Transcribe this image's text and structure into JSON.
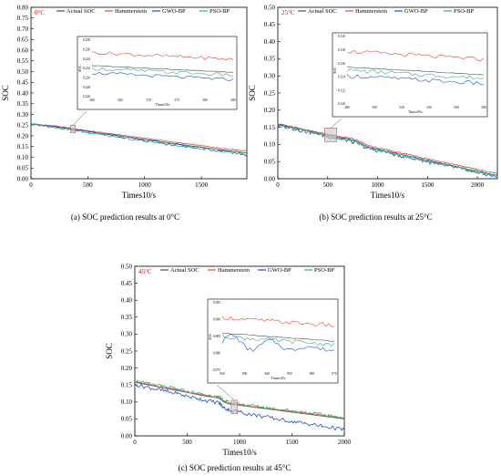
{
  "colors": {
    "actual": "#4d4d4d",
    "hammerstein": "#e8413c",
    "gwo": "#1f4fd6",
    "pso": "#2fb36a",
    "temp_badge": "#e00000"
  },
  "legend": [
    "Actual SOC",
    "Hammerstein",
    "GWO-BP",
    "PSO-BP"
  ],
  "chart_data": [
    {
      "type": "line",
      "temperature_label": "0°C",
      "caption": "(a) SOC prediction results at 0°C",
      "xlabel": "Times10/s",
      "ylabel": "SOC",
      "xlim": [
        0,
        1900
      ],
      "ylim": [
        0,
        0.8
      ],
      "xticks": [
        "0",
        "500",
        "1000",
        "1500"
      ],
      "yticks": [
        "0.00",
        "0.05",
        "0.10",
        "0.15",
        "0.20",
        "0.25",
        "0.30",
        "0.35",
        "0.40",
        "0.45",
        "0.50",
        "0.55",
        "0.60",
        "0.65",
        "0.70",
        "0.75",
        "0.80"
      ],
      "x": [
        0,
        100,
        200,
        300,
        400,
        500,
        600,
        700,
        800,
        900,
        1000,
        1100,
        1200,
        1300,
        1400,
        1500,
        1600,
        1700,
        1800,
        1900
      ],
      "series": [
        {
          "name": "Actual SOC",
          "values": [
            0.255,
            0.25,
            0.244,
            0.238,
            0.229,
            0.221,
            0.213,
            0.205,
            0.198,
            0.19,
            0.183,
            0.176,
            0.168,
            0.161,
            0.154,
            0.147,
            0.14,
            0.133,
            0.127,
            0.12
          ]
        },
        {
          "name": "Hammerstein",
          "values": [
            0.256,
            0.251,
            0.246,
            0.24,
            0.232,
            0.224,
            0.217,
            0.21,
            0.203,
            0.196,
            0.189,
            0.182,
            0.175,
            0.168,
            0.161,
            0.154,
            0.147,
            0.141,
            0.135,
            0.129
          ]
        },
        {
          "name": "GWO-BP",
          "values": [
            0.254,
            0.248,
            0.242,
            0.235,
            0.226,
            0.222,
            0.208,
            0.206,
            0.19,
            0.19,
            0.176,
            0.175,
            0.16,
            0.159,
            0.147,
            0.146,
            0.133,
            0.132,
            0.12,
            0.11
          ]
        },
        {
          "name": "PSO-BP",
          "values": [
            0.253,
            0.247,
            0.241,
            0.233,
            0.224,
            0.214,
            0.213,
            0.197,
            0.198,
            0.18,
            0.182,
            0.166,
            0.166,
            0.151,
            0.153,
            0.137,
            0.14,
            0.122,
            0.126,
            0.105
          ]
        }
      ],
      "inset": {
        "xlabel": "Times10/s",
        "ylabel": "SOC",
        "xticks": [
          "360",
          "365",
          "370",
          "375",
          "380",
          "385"
        ],
        "yticks": [
          "0.226",
          "0.228",
          "0.230",
          "0.232",
          "0.234",
          "0.236",
          "0.238"
        ]
      }
    },
    {
      "type": "line",
      "temperature_label": "25°C",
      "caption": "(b) SOC prediction results at 25°C",
      "xlabel": "Times10/s",
      "ylabel": "SOC",
      "xlim": [
        0,
        2200
      ],
      "ylim": [
        0,
        0.5
      ],
      "xticks": [
        "0",
        "500",
        "1000",
        "1500",
        "2000"
      ],
      "yticks": [
        "0.00",
        "0.05",
        "0.10",
        "0.15",
        "0.20",
        "0.25",
        "0.30",
        "0.35",
        "0.40",
        "0.45",
        "0.50"
      ],
      "x": [
        0,
        100,
        200,
        300,
        400,
        500,
        600,
        700,
        800,
        900,
        1000,
        1100,
        1200,
        1300,
        1400,
        1500,
        1600,
        1700,
        1800,
        1900,
        2000,
        2100,
        2200
      ],
      "series": [
        {
          "name": "Actual SOC",
          "values": [
            0.158,
            0.152,
            0.146,
            0.14,
            0.133,
            0.127,
            0.121,
            0.117,
            0.108,
            0.093,
            0.086,
            0.08,
            0.073,
            0.067,
            0.06,
            0.054,
            0.047,
            0.041,
            0.035,
            0.028,
            0.022,
            0.015,
            0.01
          ]
        },
        {
          "name": "Hammerstein",
          "values": [
            0.16,
            0.154,
            0.148,
            0.142,
            0.136,
            0.13,
            0.124,
            0.12,
            0.112,
            0.097,
            0.09,
            0.084,
            0.077,
            0.071,
            0.065,
            0.058,
            0.052,
            0.046,
            0.04,
            0.033,
            0.027,
            0.02,
            0.015
          ]
        },
        {
          "name": "GWO-BP",
          "values": [
            0.156,
            0.15,
            0.143,
            0.137,
            0.13,
            0.123,
            0.118,
            0.112,
            0.103,
            0.089,
            0.082,
            0.076,
            0.069,
            0.063,
            0.056,
            0.05,
            0.043,
            0.037,
            0.031,
            0.024,
            0.018,
            0.011,
            0.006
          ]
        },
        {
          "name": "PSO-BP",
          "values": [
            0.157,
            0.151,
            0.144,
            0.138,
            0.131,
            0.125,
            0.119,
            0.114,
            0.105,
            0.091,
            0.084,
            0.078,
            0.071,
            0.065,
            0.058,
            0.052,
            0.045,
            0.039,
            0.033,
            0.026,
            0.02,
            0.013,
            0.008
          ]
        }
      ],
      "inset": {
        "xlabel": "Times10/s",
        "ylabel": "SOC",
        "xticks": [
          "480",
          "500",
          "520",
          "540",
          "560",
          "580"
        ],
        "yticks": [
          "0.120",
          "0.122",
          "0.124",
          "0.126",
          "0.128",
          "0.130"
        ]
      }
    },
    {
      "type": "line",
      "temperature_label": "45°C",
      "caption": "(c) SOC prediction results at 45°C",
      "xlabel": "Times10/s",
      "ylabel": "SOC",
      "xlim": [
        0,
        2000
      ],
      "ylim": [
        0,
        0.5
      ],
      "xticks": [
        "0",
        "500",
        "1000",
        "1500",
        "2000"
      ],
      "yticks": [
        "0.00",
        "0.05",
        "0.10",
        "0.15",
        "0.20",
        "0.25",
        "0.30",
        "0.35",
        "0.40",
        "0.45",
        "0.50"
      ],
      "x": [
        0,
        100,
        200,
        300,
        400,
        500,
        600,
        700,
        800,
        850,
        900,
        1000,
        1100,
        1200,
        1300,
        1400,
        1500,
        1600,
        1700,
        1800,
        1900,
        2000
      ],
      "series": [
        {
          "name": "Actual SOC",
          "values": [
            0.158,
            0.152,
            0.146,
            0.14,
            0.134,
            0.128,
            0.122,
            0.116,
            0.112,
            0.1,
            0.094,
            0.09,
            0.086,
            0.082,
            0.078,
            0.074,
            0.07,
            0.066,
            0.062,
            0.058,
            0.054,
            0.05
          ]
        },
        {
          "name": "Hammerstein",
          "values": [
            0.16,
            0.154,
            0.148,
            0.142,
            0.136,
            0.13,
            0.124,
            0.118,
            0.114,
            0.102,
            0.096,
            0.092,
            0.088,
            0.084,
            0.08,
            0.076,
            0.072,
            0.068,
            0.064,
            0.06,
            0.056,
            0.052
          ]
        },
        {
          "name": "GWO-BP",
          "values": [
            0.152,
            0.145,
            0.138,
            0.131,
            0.124,
            0.117,
            0.11,
            0.103,
            0.098,
            0.083,
            0.076,
            0.07,
            0.064,
            0.058,
            0.053,
            0.048,
            0.043,
            0.038,
            0.033,
            0.028,
            0.023,
            0.018
          ]
        },
        {
          "name": "PSO-BP",
          "values": [
            0.162,
            0.156,
            0.15,
            0.144,
            0.138,
            0.132,
            0.126,
            0.12,
            0.116,
            0.104,
            0.098,
            0.094,
            0.09,
            0.086,
            0.082,
            0.078,
            0.074,
            0.07,
            0.066,
            0.062,
            0.058,
            0.054
          ]
        }
      ],
      "inset": {
        "xlabel": "Times10/s",
        "ylabel": "SOC",
        "xticks": [
          "920",
          "930",
          "940",
          "950",
          "960",
          "970"
        ],
        "yticks": [
          "0.075",
          "0.080",
          "0.085",
          "0.090",
          "0.095"
        ]
      }
    }
  ]
}
